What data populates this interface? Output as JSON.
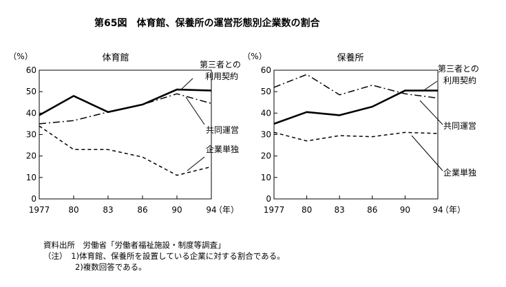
{
  "title": "第65図　体育館、保養所の運営形態別企業数の割合",
  "y_unit": "（%）",
  "x_unit": "（年）",
  "chart_data": [
    {
      "type": "line",
      "title": "体育館",
      "xlabel": "（年）",
      "ylabel": "（%）",
      "x": [
        "1977",
        "80",
        "83",
        "86",
        "90",
        "94"
      ],
      "ylim": [
        0,
        60
      ],
      "yticks": [
        0,
        10,
        20,
        30,
        40,
        50,
        60
      ],
      "series": [
        {
          "name": "第三者との利用契約",
          "label_lines": [
            "第三者との",
            "利用契約"
          ],
          "style": "solid",
          "values": [
            39,
            48,
            40.5,
            44,
            51,
            50.5
          ]
        },
        {
          "name": "共同運営",
          "label_lines": [
            "共同運営"
          ],
          "style": "dashdot",
          "values": [
            35,
            36.5,
            40.5,
            44,
            49,
            44.5
          ]
        },
        {
          "name": "企業単独",
          "label_lines": [
            "企業単独"
          ],
          "style": "dashed",
          "values": [
            34,
            23,
            23,
            19.5,
            11,
            15
          ]
        }
      ]
    },
    {
      "type": "line",
      "title": "保養所",
      "xlabel": "（年）",
      "ylabel": "（%）",
      "x": [
        "1977",
        "80",
        "83",
        "86",
        "90",
        "94"
      ],
      "ylim": [
        0,
        60
      ],
      "yticks": [
        0,
        10,
        20,
        30,
        40,
        50,
        60
      ],
      "series": [
        {
          "name": "第三者との利用契約",
          "label_lines": [
            "第三者との",
            "利用契約"
          ],
          "style": "solid",
          "values": [
            35,
            40.5,
            39,
            43,
            50.5,
            50.5
          ]
        },
        {
          "name": "共同運営",
          "label_lines": [
            "共同運営"
          ],
          "style": "dashdot",
          "values": [
            52,
            58,
            48.5,
            53,
            49,
            47
          ]
        },
        {
          "name": "企業単独",
          "label_lines": [
            "企業単独"
          ],
          "style": "dashed",
          "values": [
            31,
            27,
            29.5,
            29,
            31,
            30.5
          ]
        }
      ]
    }
  ],
  "notes": [
    "資料出所　労働省「労働者福祉施設・制度等調査」",
    "（注）　1)体育館、保養所を設置している企業に対する割合である。",
    "　　　　2)複数回答である。"
  ]
}
